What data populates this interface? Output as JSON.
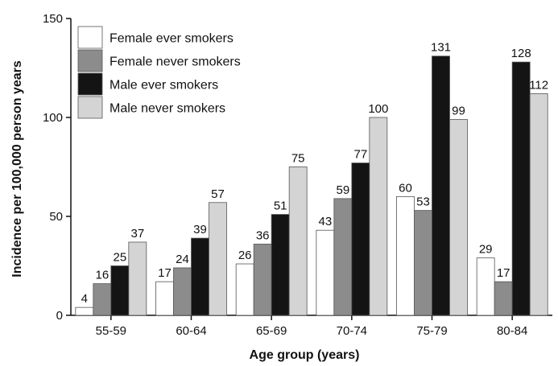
{
  "chart_data": {
    "type": "bar",
    "title": "",
    "xlabel": "Age group (years)",
    "ylabel": "Incidence per 100,000 person years",
    "ylim": [
      0,
      150
    ],
    "yticks": [
      "0",
      "50",
      "100",
      "150"
    ],
    "grid": false,
    "legend_position": "top-left",
    "categories": [
      "55-59",
      "60-64",
      "65-69",
      "70-74",
      "75-79",
      "80-84"
    ],
    "series": [
      {
        "name": "Female ever smokers",
        "color": "#ffffff",
        "values": [
          4,
          17,
          26,
          43,
          60,
          29
        ]
      },
      {
        "name": "Female never smokers",
        "color": "#8c8c8c",
        "values": [
          16,
          24,
          36,
          59,
          53,
          17
        ]
      },
      {
        "name": "Male ever smokers",
        "color": "#141414",
        "values": [
          25,
          39,
          51,
          77,
          131,
          128
        ]
      },
      {
        "name": "Male never smokers",
        "color": "#d4d4d4",
        "values": [
          37,
          57,
          75,
          100,
          99,
          112
        ]
      }
    ]
  }
}
